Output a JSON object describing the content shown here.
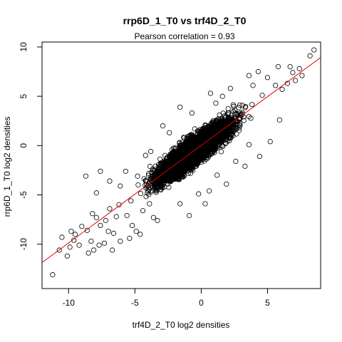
{
  "chart_data": {
    "type": "scatter",
    "title": "rrp6D_1_T0 vs trf4D_2_T0",
    "subtitle": "Pearson correlation =  0.93",
    "xlabel": "trf4D_2_T0 log2 densities",
    "ylabel": "rrp6D_1_T0 log2 densities",
    "xlim": [
      -12,
      9
    ],
    "ylim": [
      -14.5,
      10.5
    ],
    "x_ticks": [
      -10,
      -5,
      0,
      5
    ],
    "y_ticks": [
      -10,
      -5,
      0,
      5,
      10
    ],
    "x_tick_labels": [
      "-10",
      "-5",
      "0",
      "5"
    ],
    "y_tick_labels": [
      "-10",
      "-5",
      "0",
      "5",
      "10"
    ],
    "pearson_correlation": 0.93,
    "fit_line": {
      "slope": 0.99,
      "intercept": 0.02,
      "color": "#e00000"
    },
    "marker": {
      "shape": "open-circle",
      "color": "#000000"
    },
    "grid": false,
    "series": [
      {
        "points": [
          [
            -11.2,
            -13.1
          ],
          [
            8.5,
            9.7
          ],
          [
            8.2,
            9.1
          ],
          [
            -10.7,
            -10.6
          ],
          [
            -10.5,
            -9.3
          ],
          [
            -8.7,
            -3.1
          ],
          [
            -7.6,
            -2.6
          ],
          [
            -7.9,
            -4.8
          ],
          [
            -9.9,
            -10.3
          ],
          [
            -9.6,
            -9.6
          ],
          [
            -9.2,
            -10.1
          ],
          [
            -9.5,
            -9.0
          ],
          [
            -9.0,
            -8.2
          ],
          [
            -8.6,
            -8.6
          ],
          [
            -8.3,
            -9.7
          ],
          [
            -8.1,
            -10.6
          ],
          [
            -8.5,
            -10.9
          ],
          [
            -7.7,
            -10.1
          ],
          [
            -7.3,
            -9.9
          ],
          [
            -6.7,
            -10.6
          ],
          [
            -8.2,
            -6.9
          ],
          [
            -7.9,
            -7.3
          ],
          [
            -7.6,
            -8.1
          ],
          [
            -7.2,
            -7.6
          ],
          [
            -6.9,
            -6.4
          ],
          [
            -7.0,
            -8.7
          ],
          [
            -6.6,
            -8.9
          ],
          [
            -6.4,
            -7.2
          ],
          [
            -6.2,
            -6.0
          ],
          [
            -5.6,
            -7.1
          ],
          [
            -5.4,
            -9.4
          ],
          [
            -6.9,
            -3.6
          ],
          [
            -6.1,
            -4.1
          ],
          [
            -5.7,
            -2.6
          ],
          [
            -5.3,
            -5.6
          ],
          [
            -4.9,
            -8.7
          ],
          [
            -4.6,
            -9.0
          ],
          [
            -4.4,
            -6.6
          ],
          [
            -3.9,
            -5.9
          ],
          [
            -3.6,
            -7.3
          ],
          [
            -3.3,
            -7.6
          ],
          [
            -4.2,
            -1.0
          ],
          [
            -3.8,
            -0.6
          ],
          [
            -2.4,
            1.3
          ],
          [
            -1.6,
            3.9
          ],
          [
            0.7,
            5.3
          ],
          [
            -0.7,
            3.3
          ],
          [
            1.1,
            4.3
          ],
          [
            1.6,
            5.0
          ],
          [
            2.9,
            4.1
          ],
          [
            3.6,
            7.1
          ],
          [
            4.3,
            7.5
          ],
          [
            5.0,
            6.9
          ],
          [
            5.6,
            6.1
          ],
          [
            6.1,
            5.7
          ],
          [
            6.5,
            6.3
          ],
          [
            7.1,
            6.6
          ],
          [
            7.6,
            7.1
          ],
          [
            6.9,
            7.4
          ],
          [
            5.8,
            8.0
          ],
          [
            4.6,
            5.1
          ],
          [
            -0.9,
            -7.1
          ],
          [
            0.6,
            -4.6
          ],
          [
            1.9,
            -3.9
          ],
          [
            2.6,
            -1.6
          ],
          [
            3.3,
            -2.1
          ],
          [
            4.4,
            -1.1
          ],
          [
            5.2,
            0.4
          ],
          [
            5.9,
            2.6
          ],
          [
            3.6,
            0.1
          ],
          [
            1.2,
            -3.0
          ],
          [
            -1.6,
            -5.9
          ],
          [
            -2.6,
            -3.3
          ],
          [
            0.3,
            -5.9
          ],
          [
            -0.2,
            -4.9
          ],
          [
            -10.1,
            -11.2
          ],
          [
            -9.8,
            -8.7
          ],
          [
            -6.1,
            -9.7
          ],
          [
            -5.2,
            -8.1
          ],
          [
            -4.8,
            -3.1
          ],
          [
            2.2,
            5.8
          ],
          [
            3.9,
            6.1
          ],
          [
            7.4,
            7.8
          ],
          [
            6.7,
            8.0
          ],
          [
            -2.9,
            2.0
          ]
        ]
      }
    ]
  }
}
